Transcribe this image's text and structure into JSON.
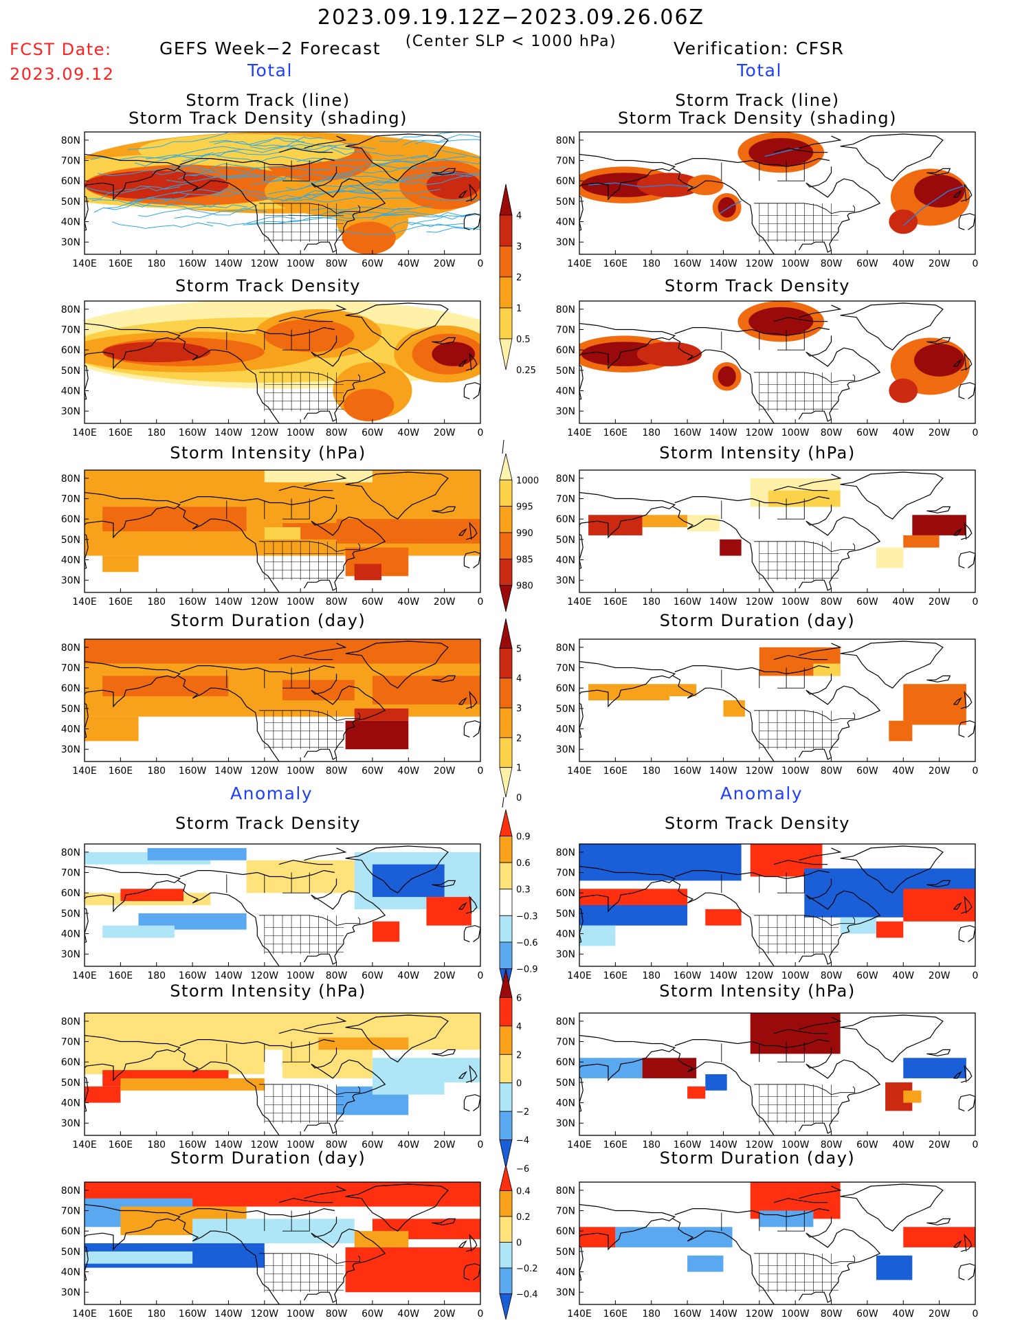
{
  "header": {
    "date_range": "2023.09.19.12Z−2023.09.26.06Z",
    "condition": "(Center SLP < 1000 hPa)",
    "fcst_label": "FCST Date:",
    "fcst_date": "2023.09.12"
  },
  "columns": [
    {
      "title": "GEFS Week−2 Forecast",
      "section_total": "Total",
      "section_anomaly": "Anomaly"
    },
    {
      "title": "Verification: CFSR",
      "section_total": "Total",
      "section_anomaly": "Anomaly"
    }
  ],
  "panel_titles": {
    "track_line": "Storm Track (line)",
    "track_shading": "Storm Track Density (shading)",
    "density": "Storm Track Density",
    "intensity": "Storm Intensity (hPa)",
    "duration": "Storm Duration (day)"
  },
  "axes": {
    "lat_labels": [
      "80N",
      "70N",
      "60N",
      "50N",
      "40N",
      "30N"
    ],
    "lon_labels": [
      "140E",
      "160E",
      "180",
      "160W",
      "140W",
      "120W",
      "100W",
      "80W",
      "60W",
      "40W",
      "20W",
      "0"
    ]
  },
  "colorbars": {
    "density_total": {
      "labels": [
        "4",
        "3",
        "2",
        "1",
        "0.5",
        "0.25"
      ],
      "colors": [
        "#9b0a0a",
        "#cc2a10",
        "#f06a10",
        "#f7a21a",
        "#fbd24a",
        "#fff1a8"
      ]
    },
    "intensity_total": {
      "labels": [
        "1000",
        "995",
        "990",
        "985",
        "980"
      ],
      "colors": [
        "#fff4b0",
        "#fbd24a",
        "#f7a21a",
        "#f06a10",
        "#cc2a10",
        "#9b0a0a"
      ]
    },
    "duration_total": {
      "labels": [
        "5",
        "4",
        "3",
        "2",
        "1",
        "0"
      ],
      "colors": [
        "#9b0a0a",
        "#cc2a10",
        "#f06a10",
        "#f7a21a",
        "#fbd24a",
        "#fff1a8"
      ]
    },
    "density_anomaly": {
      "labels": [
        "0.9",
        "0.6",
        "0.3",
        "−0.3",
        "−0.6",
        "−0.9"
      ],
      "colors": [
        "#ff3010",
        "#f7a21a",
        "#ffe27a",
        "#ffffff",
        "#aee6f8",
        "#5aa8f0",
        "#1a5fd8"
      ]
    },
    "intensity_anomaly": {
      "labels": [
        "6",
        "4",
        "2",
        "0",
        "−2",
        "−4",
        "−6"
      ],
      "colors": [
        "#9b0a0a",
        "#ff3010",
        "#f7a21a",
        "#ffe27a",
        "#aee6f8",
        "#5aa8f0",
        "#1a5fd8"
      ]
    },
    "duration_anomaly": {
      "labels": [
        "0.4",
        "0.2",
        "0",
        "−0.2",
        "−0.4"
      ],
      "colors": [
        "#ff3010",
        "#f7a21a",
        "#ffe27a",
        "#aee6f8",
        "#5aa8f0",
        "#1a5fd8"
      ]
    }
  }
}
